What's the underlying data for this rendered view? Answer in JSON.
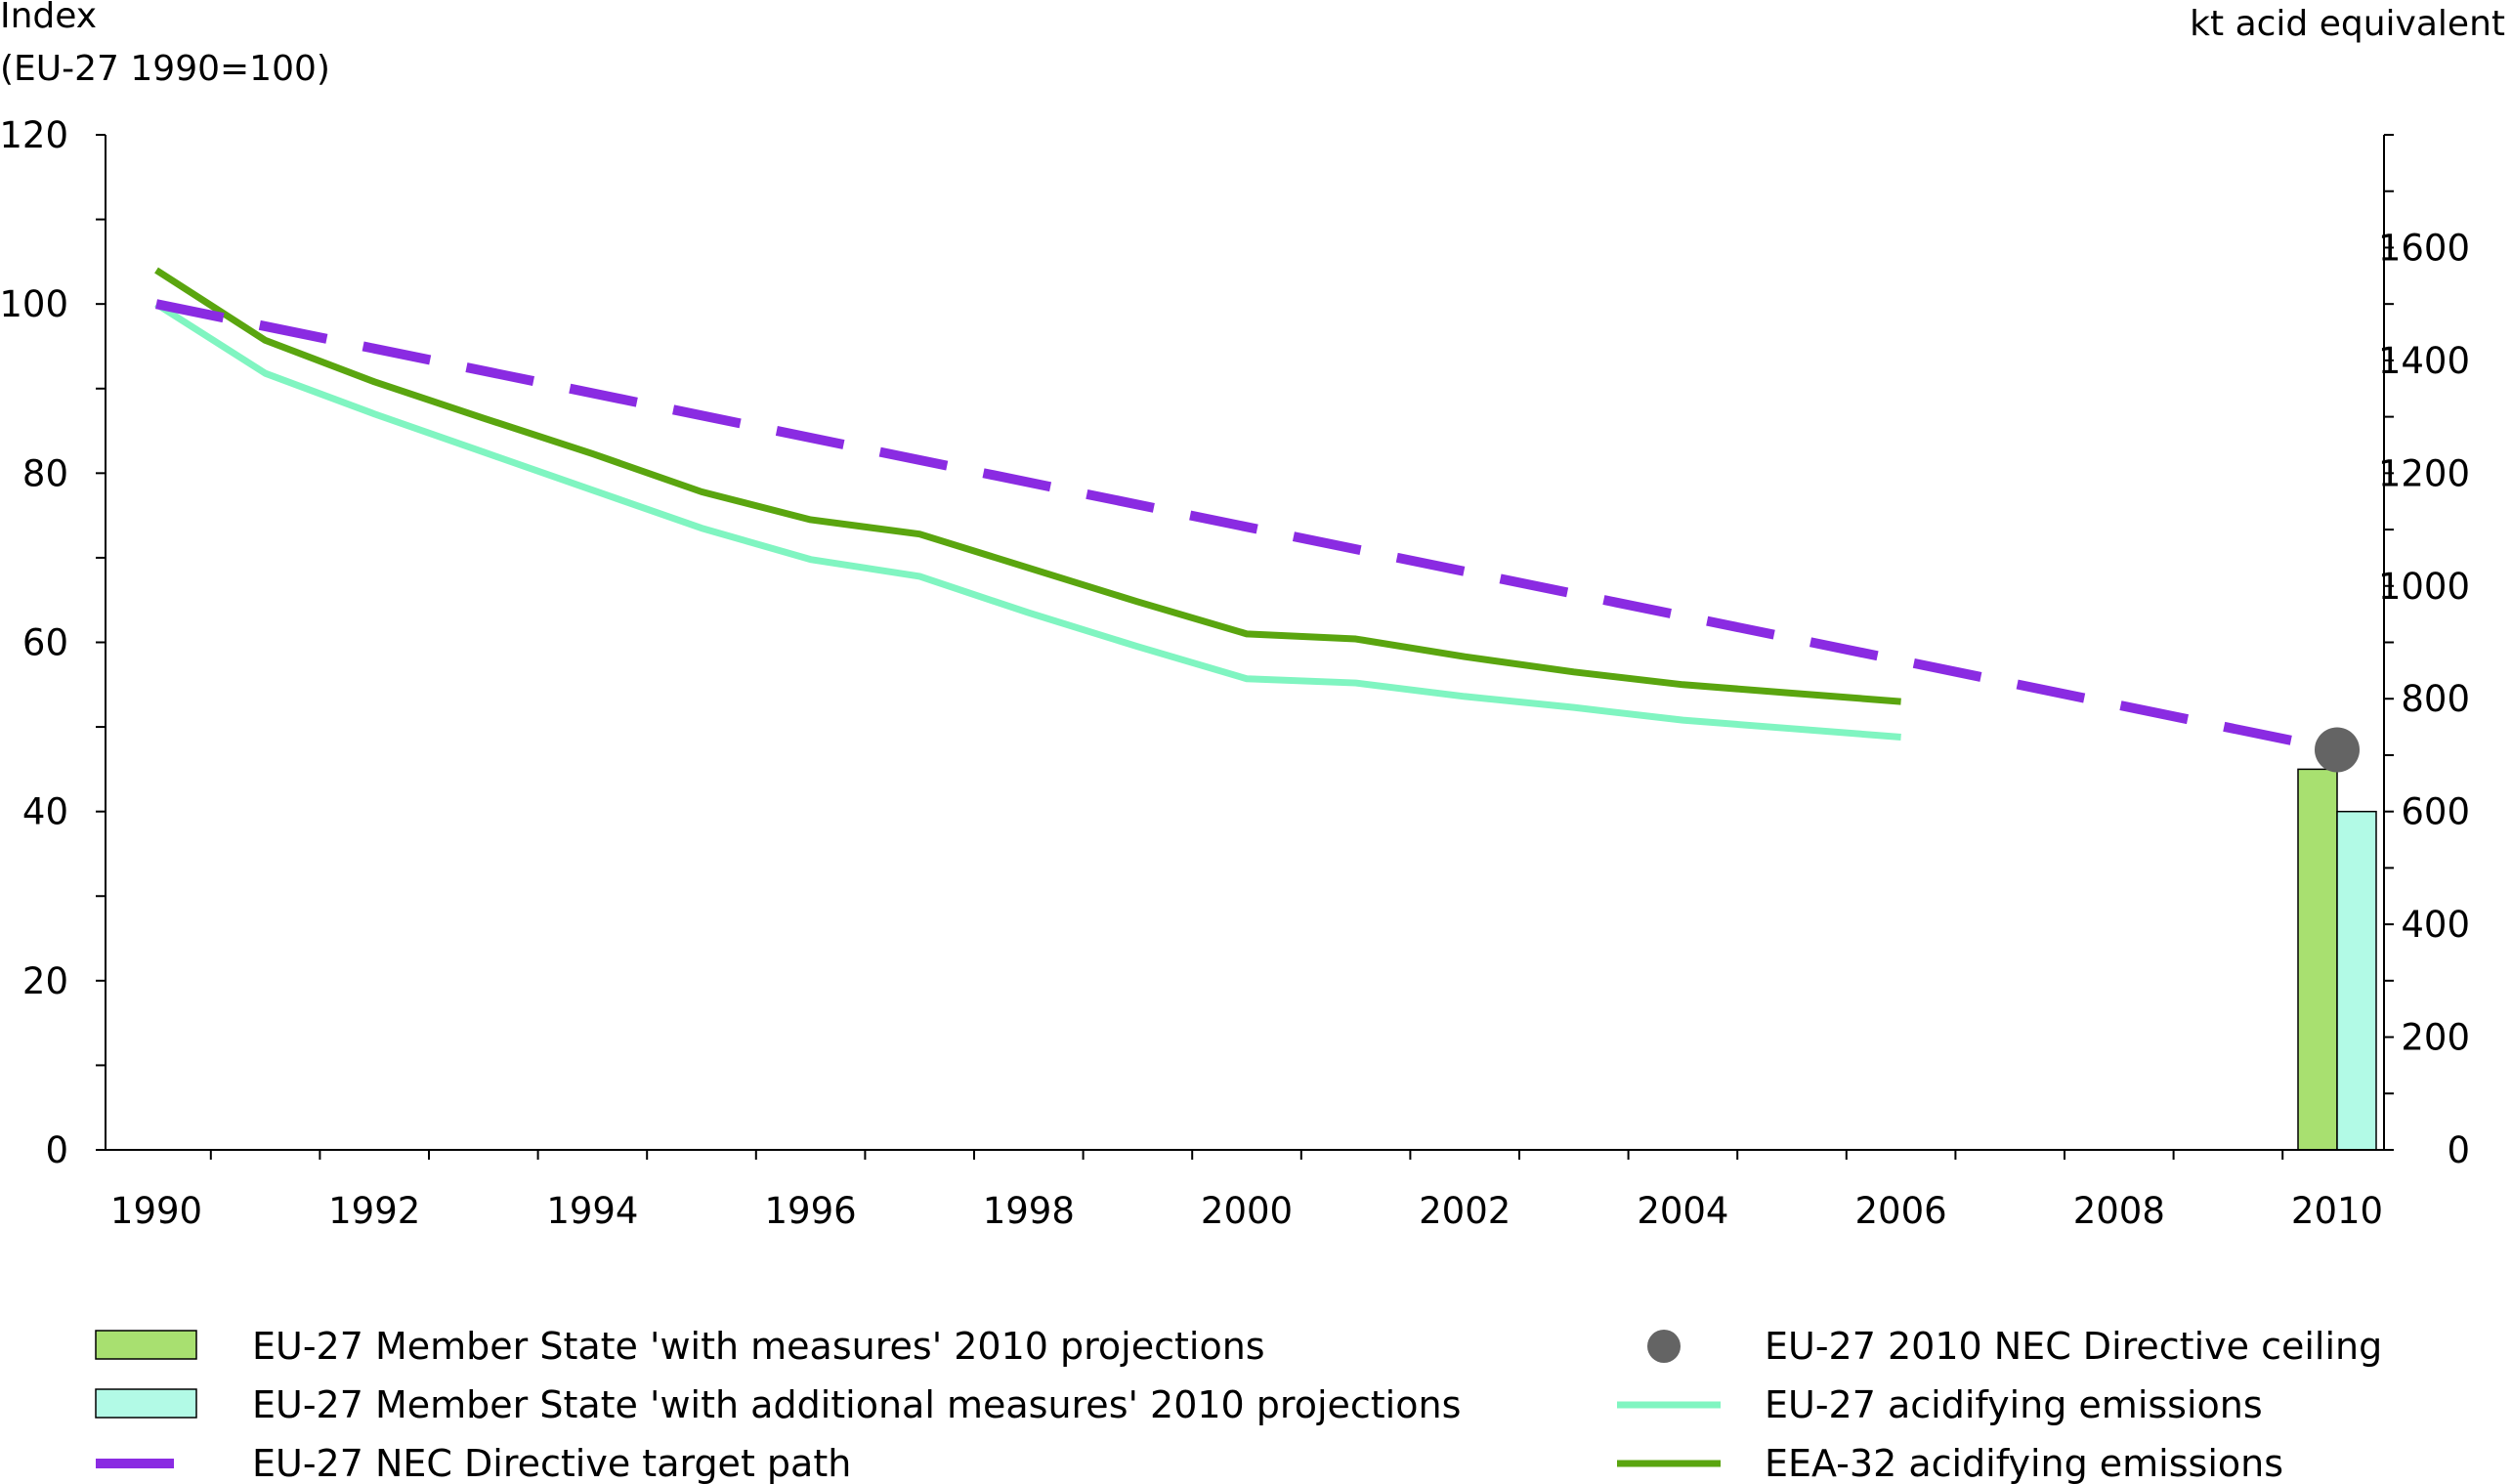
{
  "chart_data": {
    "type": "line",
    "left_axis": {
      "label_line1": "Index",
      "label_line2": "(EU-27 1990=100)",
      "ylim": [
        0,
        120
      ],
      "ticks": [
        "0",
        "20",
        "40",
        "60",
        "80",
        "100",
        "120"
      ]
    },
    "right_axis": {
      "label": "kt acid equivalent",
      "ylim": [
        0,
        1800
      ],
      "ticks": [
        "0",
        "200",
        "400",
        "600",
        "800",
        "1000",
        "1200",
        "1400",
        "1600"
      ]
    },
    "x_ticks": [
      "1990",
      "1992",
      "1994",
      "1996",
      "1998",
      "2000",
      "2002",
      "2004",
      "2006",
      "2008",
      "2010"
    ],
    "xlim": [
      1990,
      2010
    ],
    "series": [
      {
        "name": "EU-27 acidifying emissions",
        "color": "#80f5c1",
        "kind": "line",
        "x": [
          1990,
          1991,
          1992,
          1993,
          1994,
          1995,
          1996,
          1997,
          1998,
          1999,
          2000,
          2001,
          2002,
          2003,
          2004,
          2005,
          2006
        ],
        "values": [
          100,
          91.8,
          87,
          82.5,
          78,
          73.5,
          69.8,
          67.8,
          63.5,
          59.5,
          55.7,
          55.2,
          53.6,
          52.3,
          50.8,
          49.8,
          48.8
        ]
      },
      {
        "name": "EEA-32 acidifying emissions",
        "color": "#5aa50f",
        "kind": "line",
        "x": [
          1990,
          1991,
          1992,
          1993,
          1994,
          1995,
          1996,
          1997,
          1998,
          1999,
          2000,
          2001,
          2002,
          2003,
          2004,
          2005,
          2006
        ],
        "values": [
          104,
          95.7,
          90.8,
          86.5,
          82.3,
          77.8,
          74.5,
          72.8,
          68.8,
          64.8,
          61,
          60.4,
          58.3,
          56.5,
          55,
          54,
          53
        ]
      },
      {
        "name": "EU-27 NEC Directive target path",
        "color": "#8a2be2",
        "kind": "dashed",
        "x": [
          1990,
          2010
        ],
        "values": [
          100,
          47.3
        ]
      }
    ],
    "point": {
      "name": "EU-27 2010 NEC Directive ceiling",
      "color": "#646464",
      "x": 2010,
      "value": 47.3
    },
    "bars": [
      {
        "name": "EU-27 Member State 'with measures' 2010 projections",
        "color": "#a8e070",
        "x": 2010,
        "value": 45
      },
      {
        "name": "EU-27 Member State 'with additional measures' 2010 projections",
        "color": "#b2fae6",
        "x": 2010,
        "value": 40
      }
    ],
    "legend": [
      {
        "label": "EU-27 Member State 'with measures' 2010 projections",
        "symbol": "box",
        "color": "#a8e070"
      },
      {
        "label": "EU-27 Member State 'with additional measures' 2010 projections",
        "symbol": "box",
        "color": "#b2fae6"
      },
      {
        "label": "EU-27 NEC Directive target path",
        "symbol": "dash",
        "color": "#8a2be2"
      },
      {
        "label": "EU-27 2010 NEC Directive ceiling",
        "symbol": "dot",
        "color": "#646464"
      },
      {
        "label": "EU-27 acidifying emissions",
        "symbol": "line",
        "color": "#80f5c1"
      },
      {
        "label": "EEA-32 acidifying emissions",
        "symbol": "line",
        "color": "#5aa50f"
      }
    ]
  }
}
